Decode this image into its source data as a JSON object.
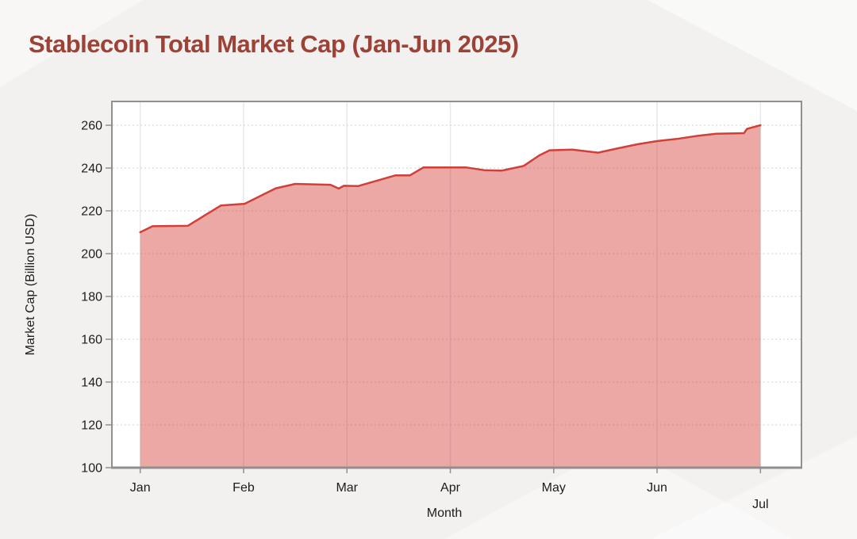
{
  "page": {
    "title": "Stablecoin Total Market Cap (Jan-Jun 2025)"
  },
  "colors": {
    "title_text": "#9c4236",
    "line": "#d23f38",
    "area_fill": "rgba(210,62,56,0.45)",
    "grid_vertical": "#e8e8e8",
    "grid_horizontal": "#d9d9d9",
    "axis_border": "#8f8f8f",
    "tick_text": "#1c1c1c",
    "plot_background": "#ffffff",
    "page_background": "#f2f1ef"
  },
  "chart_data": {
    "type": "area",
    "title": "Stablecoin Total Market Cap (Jan-Jun 2025)",
    "xlabel": "Month",
    "ylabel": "Market Cap (Billion USD)",
    "x_ticks": [
      "Jan",
      "Feb",
      "Mar",
      "Apr",
      "May",
      "Jun",
      "Jul"
    ],
    "y_ticks": [
      100,
      120,
      140,
      160,
      180,
      200,
      220,
      240,
      260
    ],
    "ylim": [
      100,
      260
    ],
    "xlim_months": [
      0,
      6
    ],
    "x_unit": "months_since_jan",
    "grid": true,
    "legend": false,
    "series": [
      {
        "name": "Stablecoin Total Market Cap (Billion USD)",
        "points": [
          [
            0.0,
            210.0
          ],
          [
            0.12,
            212.8
          ],
          [
            0.46,
            213.0
          ],
          [
            0.78,
            222.5
          ],
          [
            1.01,
            223.3
          ],
          [
            1.31,
            230.5
          ],
          [
            1.5,
            232.6
          ],
          [
            1.84,
            232.2
          ],
          [
            1.92,
            230.4
          ],
          [
            1.97,
            231.7
          ],
          [
            2.11,
            231.6
          ],
          [
            2.27,
            233.8
          ],
          [
            2.47,
            236.6
          ],
          [
            2.61,
            236.6
          ],
          [
            2.74,
            240.3
          ],
          [
            3.15,
            240.3
          ],
          [
            3.33,
            239.0
          ],
          [
            3.5,
            238.8
          ],
          [
            3.71,
            241.0
          ],
          [
            3.86,
            245.9
          ],
          [
            3.96,
            248.3
          ],
          [
            4.18,
            248.6
          ],
          [
            4.43,
            247.2
          ],
          [
            4.63,
            249.3
          ],
          [
            4.81,
            251.1
          ],
          [
            5.0,
            252.6
          ],
          [
            5.19,
            253.6
          ],
          [
            5.4,
            255.1
          ],
          [
            5.57,
            256.0
          ],
          [
            5.84,
            256.3
          ],
          [
            5.87,
            258.3
          ],
          [
            6.0,
            260.0
          ]
        ]
      }
    ]
  }
}
